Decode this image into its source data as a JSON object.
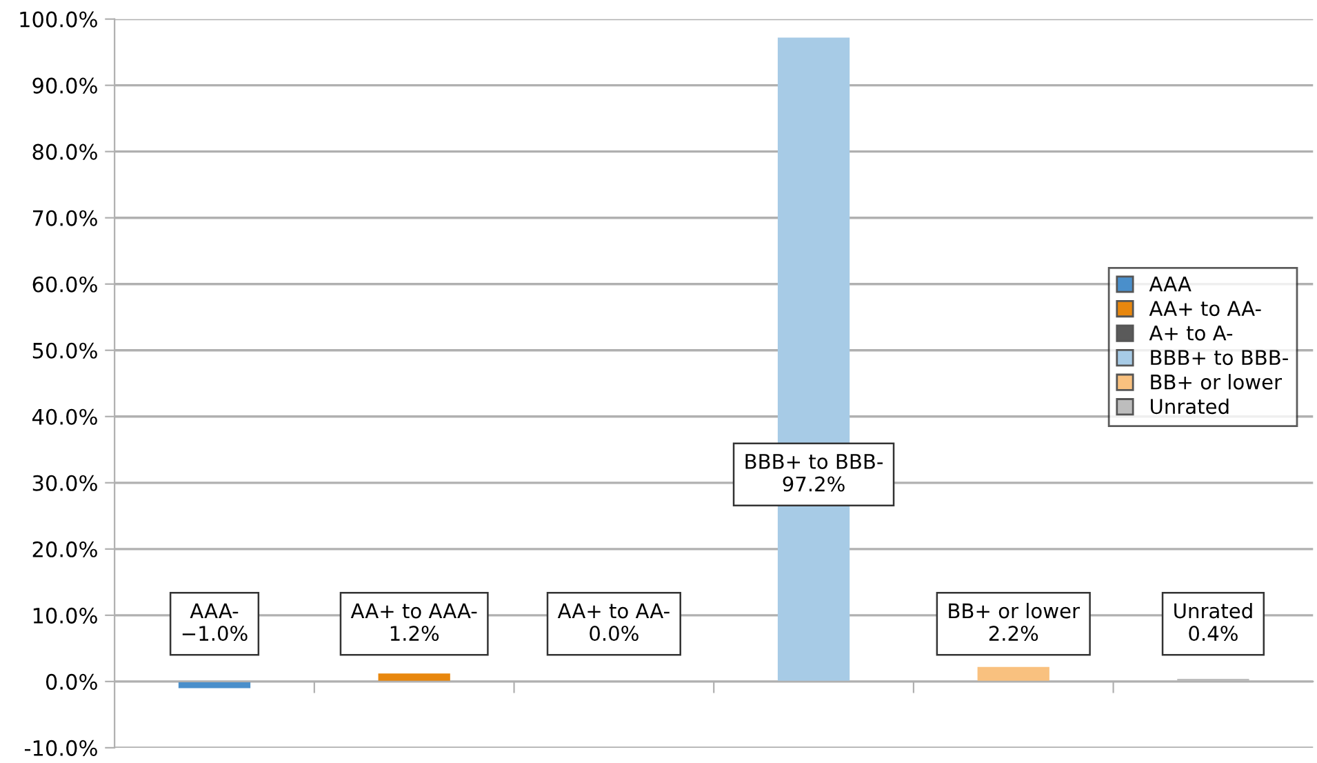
{
  "chart_data": {
    "type": "bar",
    "categories": [
      null,
      null,
      null,
      null,
      null,
      null
    ],
    "series": [
      {
        "name": "AAA",
        "color": "#4a8fcb",
        "values": [
          -1.0,
          null,
          null,
          null,
          null,
          null
        ],
        "value_labels": [
          "AAA-\n−1.0%",
          null,
          null,
          null,
          null,
          null
        ]
      },
      {
        "name": "AA+ to AA-",
        "color": "#e8870e",
        "values": [
          null,
          1.2,
          null,
          null,
          null,
          null
        ],
        "value_labels": [
          null,
          "AA+ to AAA-\n1.2%",
          null,
          null,
          null,
          null
        ]
      },
      {
        "name": "A+ to A-",
        "color": "#5a5a5a",
        "values": [
          null,
          null,
          0.0,
          null,
          null,
          null
        ],
        "value_labels": [
          null,
          null,
          "AA+ to AA-\n0.0%",
          null,
          null,
          null
        ]
      },
      {
        "name": "BBB+ to BBB-",
        "color": "#a7cbe6",
        "values": [
          null,
          null,
          null,
          97.2,
          null,
          null
        ],
        "value_labels": [
          null,
          null,
          null,
          "BBB+ to BBB-\n97.2%",
          null,
          null
        ]
      },
      {
        "name": "BB+ or lower",
        "color": "#f9c17f",
        "values": [
          null,
          null,
          null,
          null,
          2.2,
          null
        ],
        "value_labels": [
          null,
          null,
          null,
          null,
          "BB+ or lower\n2.2%",
          null
        ]
      },
      {
        "name": "Unrated",
        "color": "#bdbdbd",
        "values": [
          null,
          null,
          null,
          null,
          null,
          0.4
        ],
        "value_labels": [
          null,
          null,
          null,
          null,
          null,
          "Unrated\n0.4%"
        ]
      }
    ],
    "ylim": [
      -10,
      100
    ],
    "yticks": [
      {
        "value": -10,
        "label": "-10.0%"
      },
      {
        "value": 0,
        "label": "0.0%"
      },
      {
        "value": 10,
        "label": "10.0%"
      },
      {
        "value": 20,
        "label": "20.0%"
      },
      {
        "value": 30,
        "label": "30.0%"
      },
      {
        "value": 40,
        "label": "40.0%"
      },
      {
        "value": 50,
        "label": "50.0%"
      },
      {
        "value": 60,
        "label": "60.0%"
      },
      {
        "value": 70,
        "label": "70.0%"
      },
      {
        "value": 80,
        "label": "80.0%"
      },
      {
        "value": 90,
        "label": "90.0%"
      },
      {
        "value": 100,
        "label": "100.0%"
      }
    ],
    "grid": "y",
    "legend": "right",
    "tick_labels": "y"
  }
}
